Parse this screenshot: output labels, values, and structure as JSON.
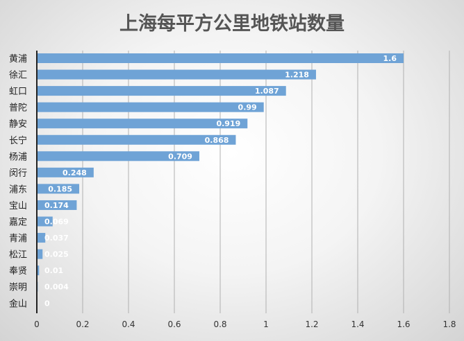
{
  "chart_data": {
    "type": "bar",
    "orientation": "horizontal",
    "title": "上海每平方公里地铁站数量",
    "categories": [
      "黄浦",
      "徐汇",
      "虹口",
      "普陀",
      "静安",
      "长宁",
      "杨浦",
      "闵行",
      "浦东",
      "宝山",
      "嘉定",
      "青浦",
      "松江",
      "奉贤",
      "崇明",
      "金山"
    ],
    "values": [
      1.6,
      1.218,
      1.087,
      0.99,
      0.919,
      0.868,
      0.709,
      0.248,
      0.185,
      0.174,
      0.069,
      0.037,
      0.025,
      0.01,
      0.004,
      0
    ],
    "value_labels": [
      "1.6",
      "1.218",
      "1.087",
      "0.99",
      "0.919",
      "0.868",
      "0.709",
      "0.248",
      "0.185",
      "0.174",
      "0.069",
      "0.037",
      "0.025",
      "0.01",
      "0.004",
      "0"
    ],
    "xlim": [
      0,
      1.8
    ],
    "xticks": [
      "0",
      "0.2",
      "0.4",
      "0.6",
      "0.8",
      "1",
      "1.2",
      "1.4",
      "1.6",
      "1.8"
    ],
    "xlabel": "",
    "ylabel": "",
    "grid": true,
    "legend": false,
    "bar_color": "#6fa3d6"
  }
}
